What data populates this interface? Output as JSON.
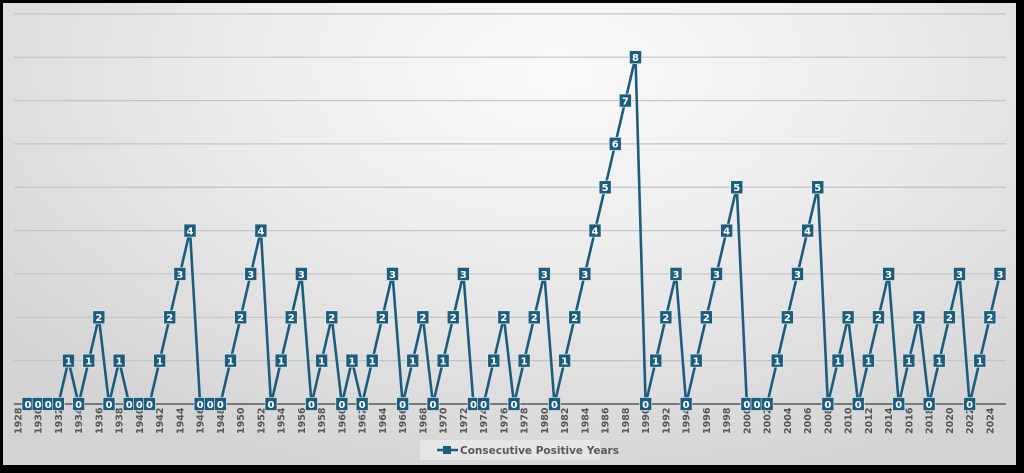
{
  "chart_data": {
    "type": "line",
    "title": "",
    "xlabel": "",
    "ylabel": "",
    "ylim": [
      0,
      9
    ],
    "grid": true,
    "y_axis_labels_visible": false,
    "legend": {
      "position": "bottom",
      "entries": [
        "Consecutive Positive Years"
      ]
    },
    "series_color": "#1c5d7e",
    "x_tick_labels": [
      "1928",
      "1930",
      "1932",
      "1934",
      "1936",
      "1938",
      "1940",
      "1942",
      "1944",
      "1946",
      "1948",
      "1950",
      "1952",
      "1954",
      "1956",
      "1958",
      "1960",
      "1962",
      "1964",
      "1966",
      "1968",
      "1970",
      "1972",
      "1974",
      "1976",
      "1978",
      "1980",
      "1982",
      "1984",
      "1986",
      "1988",
      "1990",
      "1992",
      "1994",
      "1996",
      "1998",
      "2000",
      "2002",
      "2004",
      "2006",
      "2008",
      "2010",
      "2012",
      "2014",
      "2016",
      "2018",
      "2020",
      "2022",
      "2024"
    ],
    "x": [
      1929,
      1930,
      1931,
      1932,
      1933,
      1934,
      1935,
      1936,
      1937,
      1938,
      1939,
      1940,
      1941,
      1942,
      1943,
      1944,
      1945,
      1946,
      1947,
      1948,
      1949,
      1950,
      1951,
      1952,
      1953,
      1954,
      1955,
      1956,
      1957,
      1958,
      1959,
      1960,
      1961,
      1962,
      1963,
      1964,
      1965,
      1966,
      1967,
      1968,
      1969,
      1970,
      1971,
      1972,
      1973,
      1974,
      1975,
      1976,
      1977,
      1978,
      1979,
      1980,
      1981,
      1982,
      1983,
      1984,
      1985,
      1986,
      1987,
      1988,
      1989,
      1990,
      1991,
      1992,
      1993,
      1994,
      1995,
      1996,
      1997,
      1998,
      1999,
      2000,
      2001,
      2002,
      2003,
      2004,
      2005,
      2006,
      2007,
      2008,
      2009,
      2010,
      2011,
      2012,
      2013,
      2014,
      2015,
      2016,
      2017,
      2018,
      2019,
      2020,
      2021,
      2022,
      2023,
      2024,
      2025
    ],
    "series": [
      {
        "name": "Consecutive Positive Years",
        "values": [
          0,
          0,
          0,
          0,
          1,
          0,
          1,
          2,
          0,
          1,
          0,
          0,
          0,
          1,
          2,
          3,
          4,
          0,
          0,
          0,
          1,
          2,
          3,
          4,
          0,
          1,
          2,
          3,
          0,
          1,
          2,
          0,
          1,
          0,
          1,
          2,
          3,
          0,
          1,
          2,
          0,
          1,
          2,
          3,
          0,
          0,
          1,
          2,
          0,
          1,
          2,
          3,
          0,
          1,
          2,
          3,
          4,
          5,
          6,
          7,
          8,
          0,
          1,
          2,
          3,
          0,
          1,
          2,
          3,
          4,
          5,
          0,
          0,
          0,
          1,
          2,
          3,
          4,
          5,
          0,
          1,
          2,
          0,
          1,
          2,
          3,
          0,
          1,
          2,
          0,
          1,
          2,
          3,
          0,
          1,
          2,
          3
        ]
      }
    ]
  }
}
